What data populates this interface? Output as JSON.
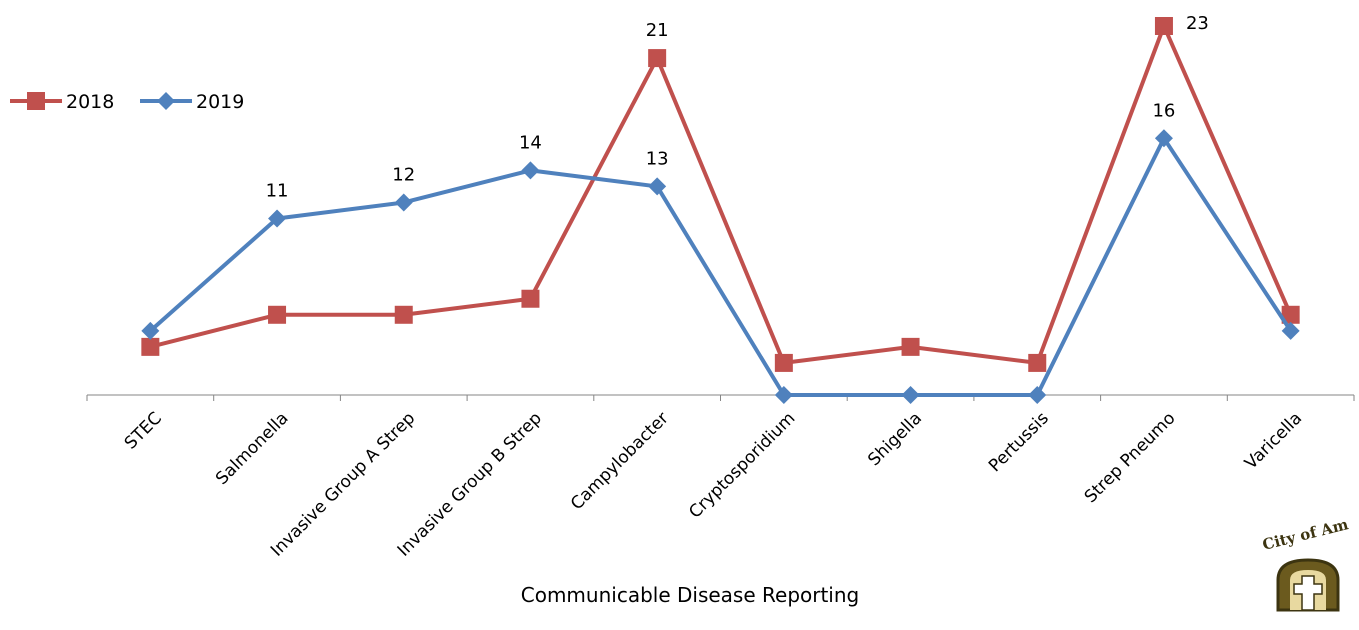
{
  "chart_data": {
    "type": "line",
    "categories": [
      "STEC",
      "Salmonella",
      "Invasive Group A Strep",
      "Invasive Group B Strep",
      "Campylobacter",
      "Cryptosporidium",
      "Shigella",
      "Pertussis",
      "Strep Pneumo",
      "Varicella"
    ],
    "series": [
      {
        "name": "2018",
        "color": "#C0504D",
        "marker": "square",
        "values": [
          3,
          5,
          5,
          6,
          21,
          2,
          3,
          2,
          23,
          5
        ],
        "data_labels": [
          "",
          "",
          "",
          "",
          "21",
          "",
          "",
          "",
          "23",
          ""
        ]
      },
      {
        "name": "2019",
        "color": "#4F81BD",
        "marker": "diamond",
        "values": [
          4,
          11,
          12,
          14,
          13,
          0,
          0,
          0,
          16,
          4
        ],
        "data_labels": [
          "",
          "11",
          "12",
          "14",
          "13",
          "",
          "",
          "",
          "16",
          ""
        ]
      }
    ],
    "ylim": [
      0,
      23
    ],
    "grid": false,
    "legend": "top-left",
    "caption": "Communicable Disease Reporting"
  },
  "logo": {
    "text": "City of Am"
  }
}
